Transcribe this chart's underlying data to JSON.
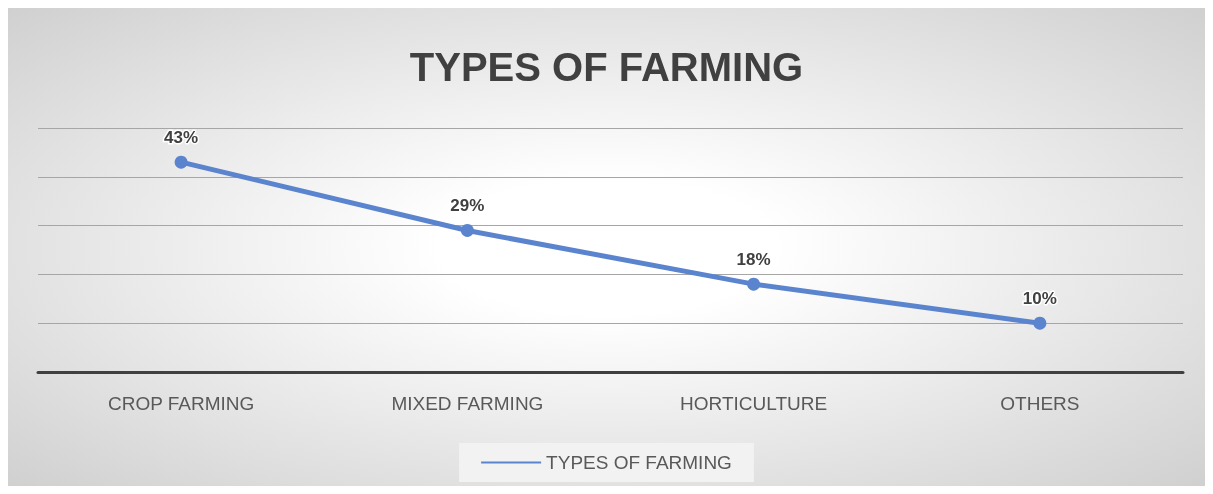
{
  "chart_data": {
    "type": "line",
    "title": "TYPES OF FARMING",
    "categories": [
      "CROP FARMING",
      "MIXED FARMING",
      "HORTICULTURE",
      "OTHERS"
    ],
    "series": [
      {
        "name": "TYPES OF FARMING",
        "color": "#5b84cf",
        "values": [
          43,
          29,
          18,
          10
        ],
        "value_labels": [
          "43%",
          "29%",
          "18%",
          "10%"
        ]
      }
    ],
    "ylim": [
      0,
      50
    ],
    "yticks": [
      {
        "value": 0,
        "label": null
      },
      {
        "value": 10,
        "label": null
      },
      {
        "value": 20,
        "label": null
      },
      {
        "value": 30,
        "label": null
      },
      {
        "value": 40,
        "label": null
      },
      {
        "value": 50,
        "label": null
      }
    ],
    "tick_labels": "x",
    "grid": "y",
    "legend": "bottom",
    "marker": "circle",
    "line_style": "solid"
  }
}
